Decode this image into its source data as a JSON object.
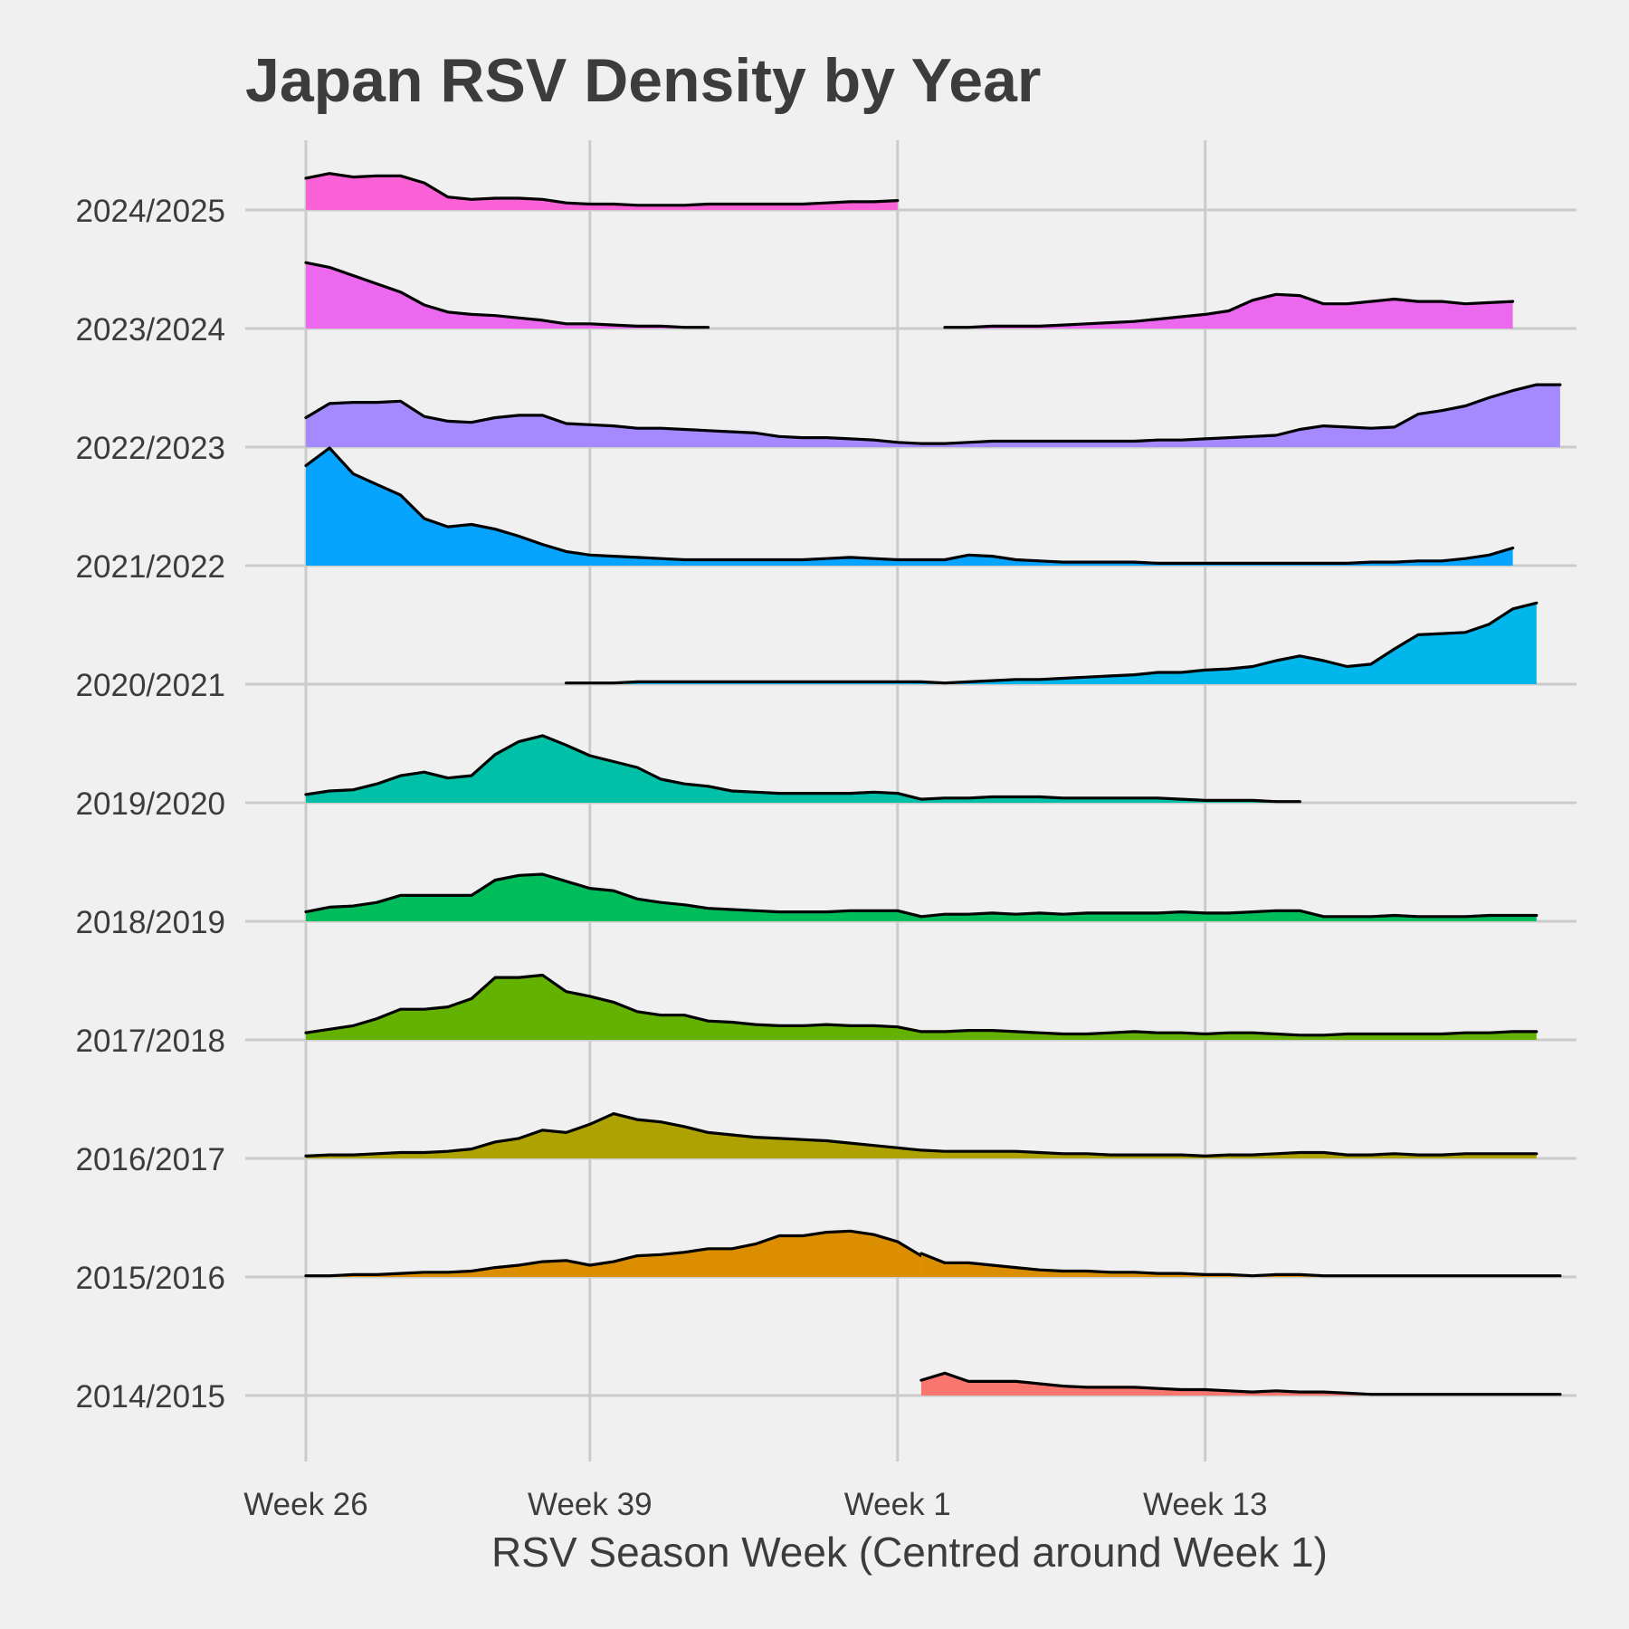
{
  "chart_data": {
    "type": "area",
    "subtype": "ridgeline",
    "title": "Japan RSV Density by Year",
    "xlabel": "RSV Season Week (Centred around Week 1)",
    "ylabel": "",
    "x_tick_labels": [
      "Week 26",
      "Week 39",
      "Week 1",
      "Week 13"
    ],
    "x_tick_positions": [
      0,
      12,
      25,
      38
    ],
    "x_range": [
      -3.5,
      53.5
    ],
    "y_categories": [
      "2014/2015",
      "2015/2016",
      "2016/2017",
      "2017/2018",
      "2018/2019",
      "2019/2020",
      "2020/2021",
      "2021/2022",
      "2022/2023",
      "2023/2024",
      "2024/2025"
    ],
    "grid": true,
    "legend": "none",
    "series": [
      {
        "name": "2014/2015",
        "color": "#f8766d",
        "segments": [
          {
            "start": 26,
            "values": [
              0.13,
              0.19,
              0.12,
              0.12,
              0.12,
              0.1,
              0.08,
              0.07,
              0.07,
              0.07,
              0.06,
              0.05,
              0.05,
              0.04,
              0.03,
              0.04,
              0.03,
              0.03,
              0.02,
              0.01,
              0.01,
              0.01,
              0.01,
              0.01,
              0.01,
              0.01,
              0.01,
              0.01
            ]
          }
        ]
      },
      {
        "name": "2015/2016",
        "color": "#db8e00",
        "segments": [
          {
            "start": 0,
            "values": [
              0.01,
              0.01,
              0.02,
              0.02,
              0.03,
              0.04,
              0.04,
              0.05,
              0.08,
              0.1,
              0.13,
              0.14,
              0.1,
              0.13,
              0.18,
              0.19,
              0.21,
              0.24,
              0.24,
              0.28,
              0.35,
              0.35,
              0.38,
              0.39,
              0.36,
              0.3,
              0.18
            ]
          },
          {
            "start": 26,
            "values": [
              0.2,
              0.12,
              0.12,
              0.1,
              0.08,
              0.06,
              0.05,
              0.05,
              0.04,
              0.04,
              0.03,
              0.03,
              0.02,
              0.02,
              0.01,
              0.02,
              0.02,
              0.01,
              0.01,
              0.01,
              0.01,
              0.01,
              0.01,
              0.01,
              0.01,
              0.01,
              0.01,
              0.01
            ]
          }
        ]
      },
      {
        "name": "2016/2017",
        "color": "#aea200",
        "segments": [
          {
            "start": 0,
            "values": [
              0.02,
              0.03,
              0.03,
              0.04,
              0.05,
              0.05,
              0.06,
              0.08,
              0.14,
              0.17,
              0.24,
              0.22,
              0.29,
              0.38,
              0.33,
              0.31,
              0.27,
              0.22,
              0.2,
              0.18,
              0.17,
              0.16,
              0.15,
              0.13,
              0.11,
              0.09,
              0.07,
              0.06,
              0.06,
              0.06,
              0.06,
              0.05,
              0.04,
              0.04,
              0.03,
              0.03,
              0.03,
              0.03,
              0.02,
              0.03,
              0.03,
              0.04,
              0.05,
              0.05,
              0.03,
              0.03,
              0.04,
              0.03,
              0.03,
              0.04,
              0.04,
              0.04,
              0.04
            ]
          }
        ]
      },
      {
        "name": "2017/2018",
        "color": "#64b200",
        "segments": [
          {
            "start": 0,
            "values": [
              0.06,
              0.09,
              0.12,
              0.18,
              0.26,
              0.26,
              0.28,
              0.35,
              0.53,
              0.53,
              0.55,
              0.41,
              0.37,
              0.32,
              0.24,
              0.21,
              0.21,
              0.16,
              0.15,
              0.13,
              0.12,
              0.12,
              0.13,
              0.12,
              0.12,
              0.11,
              0.07,
              0.07,
              0.08,
              0.08,
              0.07,
              0.06,
              0.05,
              0.05,
              0.06,
              0.07,
              0.06,
              0.06,
              0.05,
              0.06,
              0.06,
              0.05,
              0.04,
              0.04,
              0.05,
              0.05,
              0.05,
              0.05,
              0.05,
              0.06,
              0.06,
              0.07,
              0.07
            ]
          }
        ]
      },
      {
        "name": "2018/2019",
        "color": "#00bd5c",
        "segments": [
          {
            "start": 0,
            "values": [
              0.08,
              0.12,
              0.13,
              0.16,
              0.22,
              0.22,
              0.22,
              0.22,
              0.35,
              0.39,
              0.4,
              0.34,
              0.28,
              0.26,
              0.19,
              0.16,
              0.14,
              0.11,
              0.1,
              0.09,
              0.08,
              0.08,
              0.08,
              0.09,
              0.09,
              0.09,
              0.04,
              0.06,
              0.06,
              0.07,
              0.06,
              0.07,
              0.06,
              0.07,
              0.07,
              0.07,
              0.07,
              0.08,
              0.07,
              0.07,
              0.08,
              0.09,
              0.09,
              0.04,
              0.04,
              0.04,
              0.05,
              0.04,
              0.04,
              0.04,
              0.05,
              0.05,
              0.05
            ]
          }
        ]
      },
      {
        "name": "2019/2020",
        "color": "#00c1a7",
        "segments": [
          {
            "start": 0,
            "values": [
              0.07,
              0.1,
              0.11,
              0.16,
              0.23,
              0.26,
              0.21,
              0.23,
              0.41,
              0.52,
              0.57,
              0.49,
              0.4,
              0.35,
              0.3,
              0.2,
              0.16,
              0.14,
              0.1,
              0.09,
              0.08,
              0.08,
              0.08,
              0.08,
              0.09,
              0.08,
              0.03,
              0.04,
              0.04,
              0.05,
              0.05,
              0.05,
              0.04,
              0.04,
              0.04,
              0.04,
              0.04,
              0.03,
              0.02,
              0.02,
              0.02,
              0.01,
              0.01
            ]
          }
        ]
      },
      {
        "name": "2020/2021",
        "color": "#00b6eb",
        "segments": [
          {
            "start": 11,
            "values": [
              0.01,
              0.01,
              0.01,
              0.02,
              0.02,
              0.02,
              0.02,
              0.02,
              0.02,
              0.02,
              0.02,
              0.02,
              0.02,
              0.02,
              0.02,
              0.02,
              0.01,
              0.02,
              0.03,
              0.04,
              0.04,
              0.05,
              0.06,
              0.07,
              0.08,
              0.1,
              0.1,
              0.12,
              0.13,
              0.15,
              0.2,
              0.24,
              0.2,
              0.15,
              0.17,
              0.3,
              0.42,
              0.43,
              0.44,
              0.51,
              0.64,
              0.69
            ]
          }
        ]
      },
      {
        "name": "2021/2022",
        "color": "#06a4ff",
        "segments": [
          {
            "start": 0,
            "values": [
              0.85,
              1.0,
              0.78,
              0.69,
              0.6,
              0.4,
              0.33,
              0.35,
              0.31,
              0.25,
              0.18,
              0.12,
              0.09,
              0.08,
              0.07,
              0.06,
              0.05,
              0.05,
              0.05,
              0.05,
              0.05,
              0.05,
              0.06,
              0.07,
              0.06,
              0.05,
              0.05,
              0.05,
              0.09,
              0.08,
              0.05,
              0.04,
              0.03,
              0.03,
              0.03,
              0.03,
              0.02,
              0.02,
              0.02,
              0.02,
              0.02,
              0.02,
              0.02,
              0.02,
              0.02,
              0.03,
              0.03,
              0.04,
              0.04,
              0.06,
              0.09,
              0.15
            ]
          }
        ]
      },
      {
        "name": "2022/2023",
        "color": "#a58aff",
        "segments": [
          {
            "start": 0,
            "values": [
              0.25,
              0.37,
              0.38,
              0.38,
              0.39,
              0.26,
              0.22,
              0.21,
              0.25,
              0.27,
              0.27,
              0.2,
              0.19,
              0.18,
              0.16,
              0.16,
              0.15,
              0.14,
              0.13,
              0.12,
              0.09,
              0.08,
              0.08,
              0.07,
              0.06,
              0.04,
              0.03,
              0.03,
              0.04,
              0.05,
              0.05,
              0.05,
              0.05,
              0.05,
              0.05,
              0.05,
              0.06,
              0.06,
              0.07,
              0.08,
              0.09,
              0.1,
              0.15,
              0.18,
              0.17,
              0.16,
              0.17,
              0.28,
              0.31,
              0.35,
              0.42,
              0.48,
              0.53,
              0.53
            ]
          }
        ]
      },
      {
        "name": "2023/2024",
        "color": "#ec69ef",
        "segments": [
          {
            "start": 0,
            "values": [
              0.56,
              0.52,
              0.45,
              0.38,
              0.31,
              0.2,
              0.14,
              0.12,
              0.11,
              0.09,
              0.07,
              0.04,
              0.04,
              0.03,
              0.02,
              0.02,
              0.01,
              0.01
            ]
          },
          {
            "start": 27,
            "values": [
              0.01,
              0.01,
              0.02,
              0.02,
              0.02,
              0.03,
              0.04,
              0.05,
              0.06,
              0.08,
              0.1,
              0.12,
              0.15,
              0.24,
              0.29,
              0.28,
              0.21,
              0.21,
              0.23,
              0.25,
              0.23,
              0.23,
              0.21,
              0.22,
              0.23
            ]
          }
        ]
      },
      {
        "name": "2024/2025",
        "color": "#fb61d7",
        "segments": [
          {
            "start": 0,
            "values": [
              0.27,
              0.31,
              0.28,
              0.29,
              0.29,
              0.23,
              0.11,
              0.09,
              0.1,
              0.1,
              0.09,
              0.06,
              0.05,
              0.05,
              0.04,
              0.04,
              0.04,
              0.05,
              0.05,
              0.05,
              0.05,
              0.05,
              0.06,
              0.07,
              0.07,
              0.08
            ]
          }
        ]
      }
    ]
  }
}
